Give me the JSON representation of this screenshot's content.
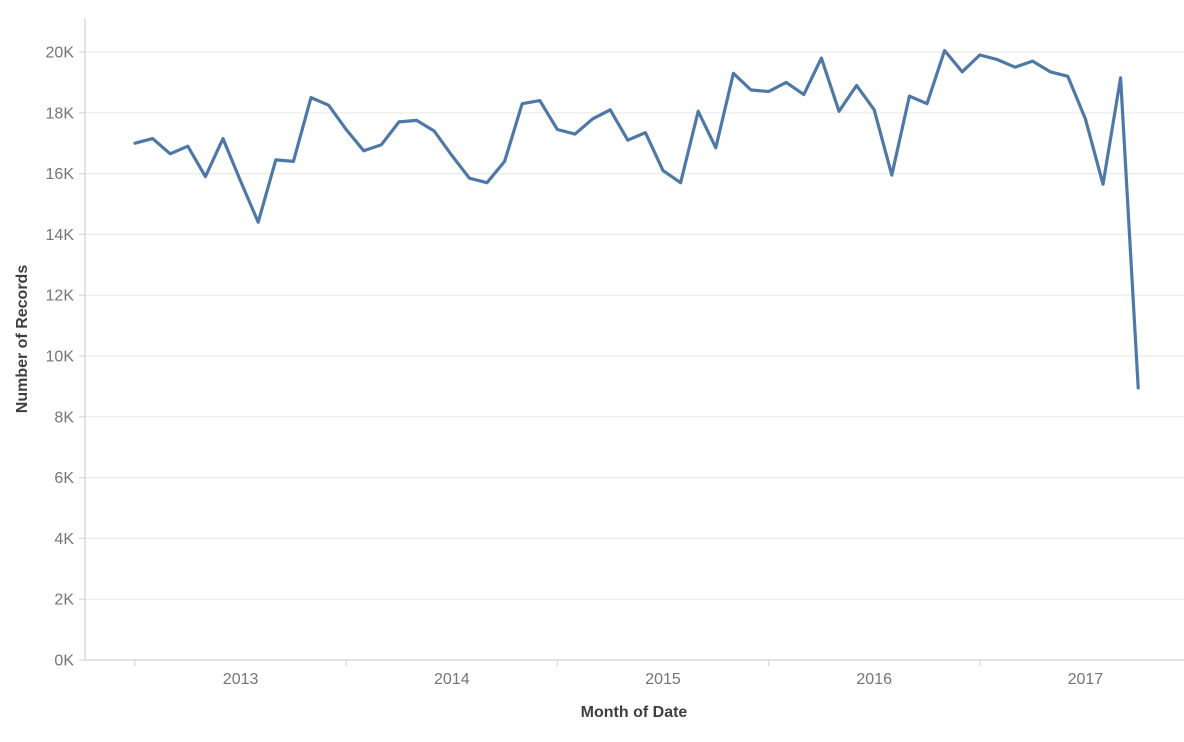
{
  "chart_data": {
    "type": "line",
    "title": "",
    "xlabel": "Month of Date",
    "ylabel": "Number of Records",
    "series_name": "Number of Records",
    "line_color": "#4e79a7",
    "grid": "horizontal",
    "legend": "none",
    "ylim": [
      0,
      20000
    ],
    "x_tick_labels": [
      "2013",
      "2014",
      "2015",
      "2016",
      "2017"
    ],
    "y_tick_labels": [
      "0K",
      "2K",
      "4K",
      "6K",
      "8K",
      "10K",
      "12K",
      "14K",
      "16K",
      "18K",
      "20K"
    ],
    "y_tick_values": [
      0,
      2000,
      4000,
      6000,
      8000,
      10000,
      12000,
      14000,
      16000,
      18000,
      20000
    ],
    "x": [
      "2013-01",
      "2013-02",
      "2013-03",
      "2013-04",
      "2013-05",
      "2013-06",
      "2013-07",
      "2013-08",
      "2013-09",
      "2013-10",
      "2013-11",
      "2013-12",
      "2014-01",
      "2014-02",
      "2014-03",
      "2014-04",
      "2014-05",
      "2014-06",
      "2014-07",
      "2014-08",
      "2014-09",
      "2014-10",
      "2014-11",
      "2014-12",
      "2015-01",
      "2015-02",
      "2015-03",
      "2015-04",
      "2015-05",
      "2015-06",
      "2015-07",
      "2015-08",
      "2015-09",
      "2015-10",
      "2015-11",
      "2015-12",
      "2016-01",
      "2016-02",
      "2016-03",
      "2016-04",
      "2016-05",
      "2016-06",
      "2016-07",
      "2016-08",
      "2016-09",
      "2016-10",
      "2016-11",
      "2016-12",
      "2017-01",
      "2017-02",
      "2017-03",
      "2017-04",
      "2017-05",
      "2017-06",
      "2017-07",
      "2017-08",
      "2017-09",
      "2017-10"
    ],
    "values": [
      17000,
      17150,
      16650,
      16900,
      15900,
      17150,
      15750,
      14400,
      16450,
      16400,
      18500,
      18250,
      17450,
      16750,
      16950,
      17700,
      17750,
      17400,
      16600,
      15850,
      15700,
      16400,
      18300,
      18400,
      17450,
      17300,
      17800,
      18100,
      17100,
      17350,
      16100,
      15700,
      18050,
      16850,
      19300,
      18750,
      18700,
      19000,
      18600,
      19800,
      18050,
      18900,
      18100,
      15950,
      18550,
      18300,
      20050,
      19350,
      19900,
      19750,
      19500,
      19700,
      19350,
      19200,
      17800,
      15650,
      19150,
      8950
    ]
  }
}
